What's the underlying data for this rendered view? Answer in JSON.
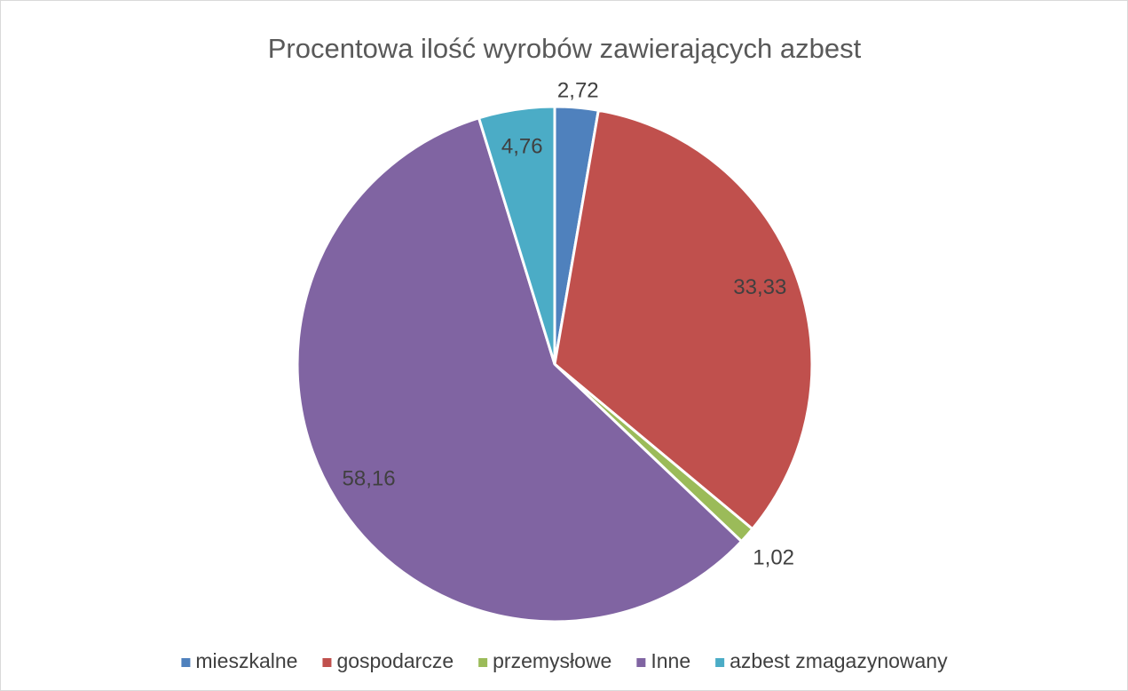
{
  "chart_data": {
    "type": "pie",
    "title": "Procentowa ilość wyrobów zawierających azbest",
    "categories": [
      "mieszkalne",
      "gospodarcze",
      "przemysłowe",
      "Inne",
      "azbest zmagazynowany"
    ],
    "values": [
      2.72,
      33.33,
      1.02,
      58.16,
      4.76
    ],
    "value_labels": [
      "2,72",
      "33,33",
      "1,02",
      "58,16",
      "4,76"
    ],
    "colors": [
      "#4f81bd",
      "#c0504d",
      "#9bbb59",
      "#8064a2",
      "#4bacc6"
    ],
    "legend": "bottom"
  }
}
